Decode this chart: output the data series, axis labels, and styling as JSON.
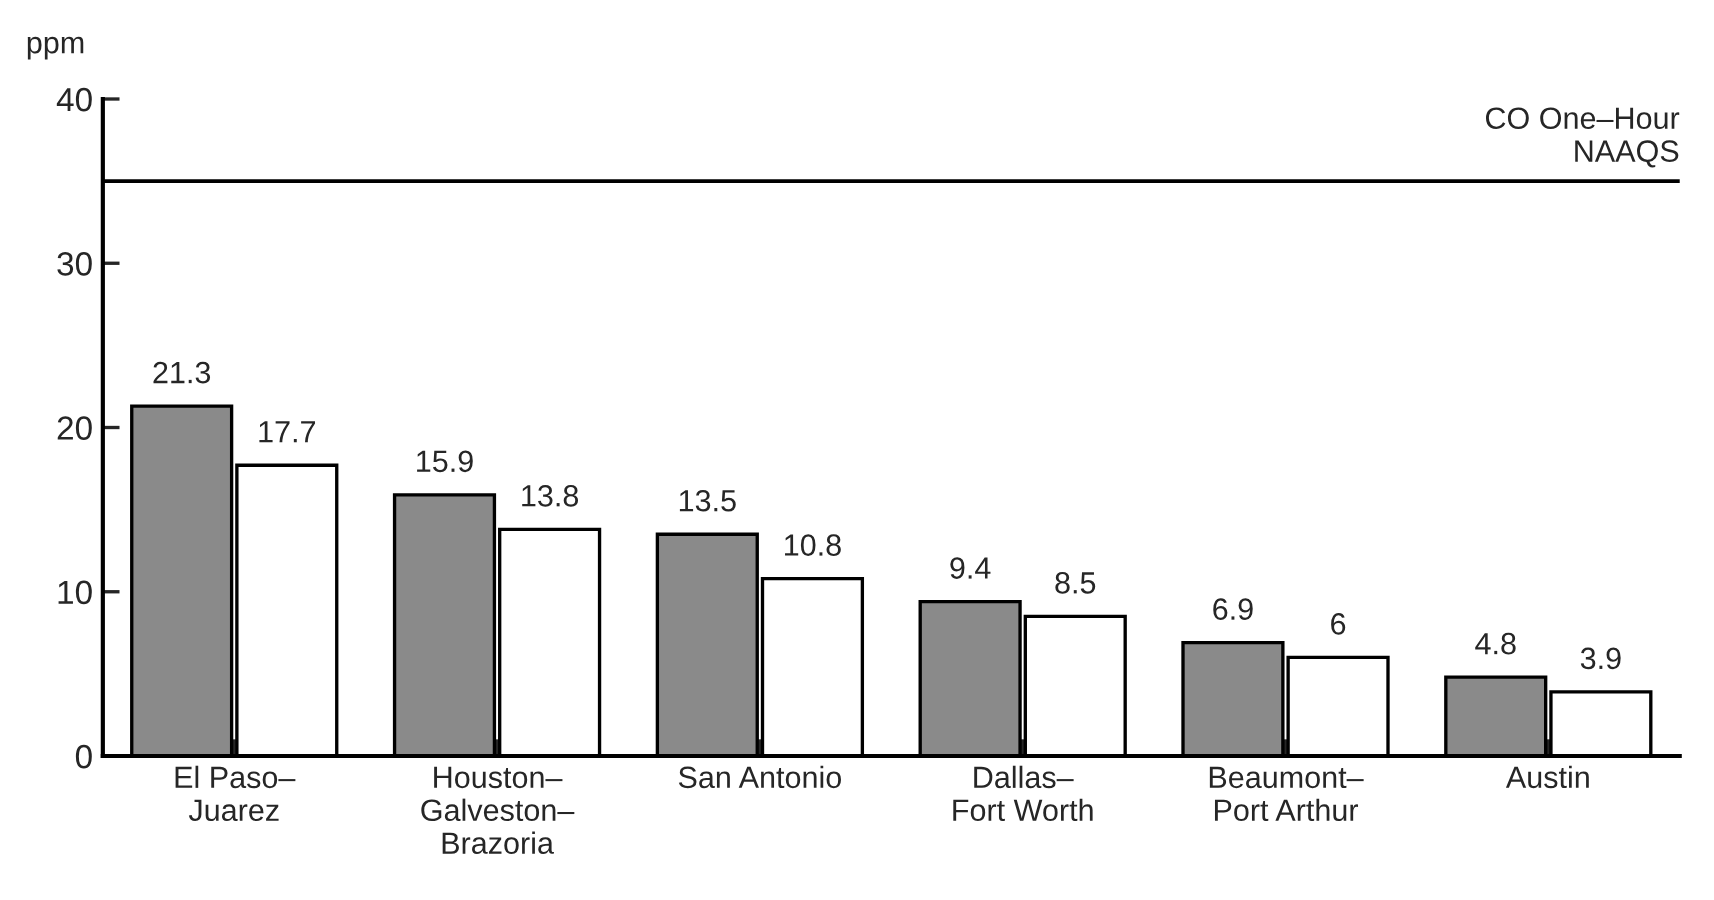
{
  "chart_data": {
    "type": "bar",
    "ylabel": "ppm",
    "categories": [
      "El Paso–\nJuarez",
      "Houston–\nGalveston–\nBrazoria",
      "San Antonio",
      "Dallas–\nFort Worth",
      "Beaumont–\nPort Arthur",
      "Austin"
    ],
    "series": [
      {
        "color": "#8a8a8a",
        "values": [
          21.3,
          15.9,
          13.5,
          9.4,
          6.9,
          4.8
        ]
      },
      {
        "color": "#ffffff",
        "values": [
          17.7,
          13.8,
          10.8,
          8.5,
          6,
          3.9
        ]
      }
    ],
    "ylim": [
      0,
      40
    ],
    "yticks": [
      0,
      10,
      20,
      30,
      40
    ],
    "ref_lines": [
      {
        "axis": "y",
        "value": 35,
        "label": "CO One–Hour\nNAAQS",
        "color": "#000000"
      }
    ],
    "data_labels": true
  }
}
